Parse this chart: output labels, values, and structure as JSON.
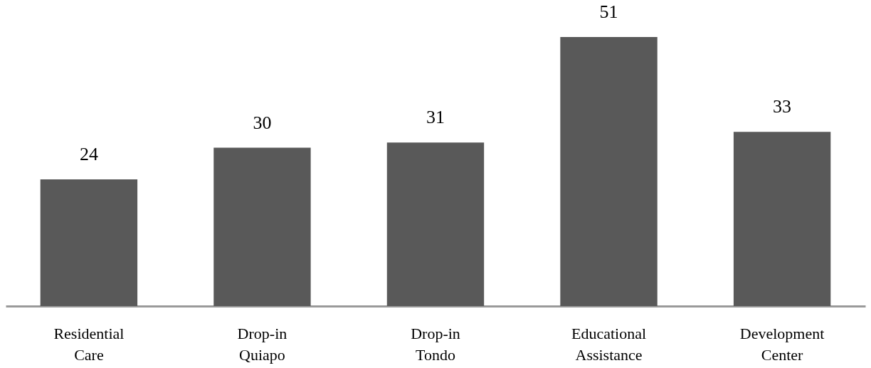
{
  "chart_data": {
    "type": "bar",
    "categories": [
      "Residential Care",
      "Drop-in Quiapo",
      "Drop-in Tondo",
      "Educational Assistance",
      "Development Center"
    ],
    "values": [
      24,
      30,
      31,
      51,
      33
    ],
    "color": "#595959",
    "ylim": [
      0,
      58
    ],
    "data_labels": true
  }
}
